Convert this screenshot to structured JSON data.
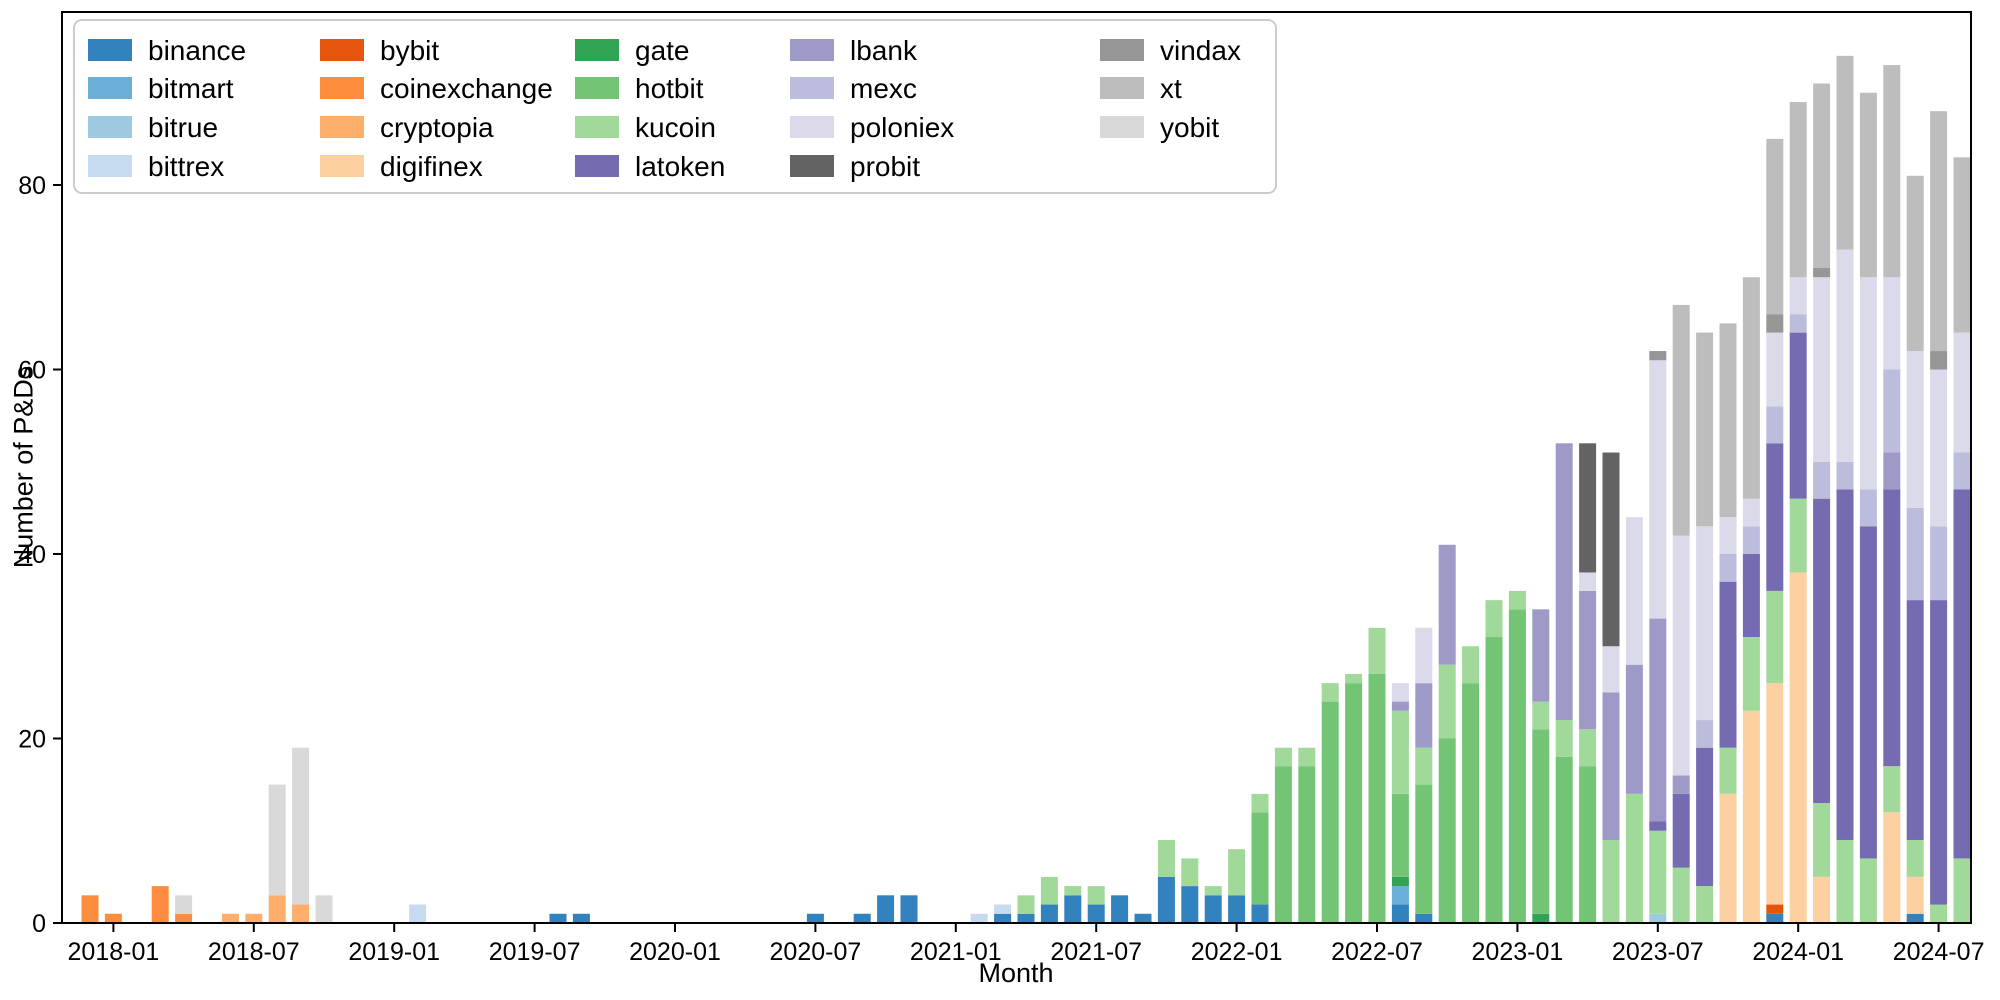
{
  "chart_data": {
    "type": "bar_stacked",
    "title": "",
    "xlabel": "Month",
    "ylabel": "Number of P&Ds",
    "ylim": [
      0,
      98
    ],
    "yticks": [
      0,
      20,
      40,
      60,
      80
    ],
    "xtick_labels": [
      "2018-01",
      "2018-07",
      "2019-01",
      "2019-07",
      "2020-01",
      "2020-07",
      "2021-01",
      "2021-07",
      "2022-01",
      "2022-07",
      "2023-01",
      "2023-07",
      "2024-01",
      "2024-07"
    ],
    "x_start_month": "2017-12",
    "x_end_month": "2024-08",
    "grid": false,
    "legend_position": "upper-left-inside",
    "stack_order": [
      "binance",
      "bitmart",
      "bitrue",
      "bittrex",
      "bybit",
      "coinexchange",
      "cryptopia",
      "digifinex",
      "gate",
      "hotbit",
      "kucoin",
      "latoken",
      "lbank",
      "mexc",
      "poloniex",
      "probit",
      "vindax",
      "xt",
      "yobit"
    ],
    "series_colors": {
      "binance": "#3182bd",
      "bitmart": "#6baed6",
      "bitrue": "#9ecae1",
      "bittrex": "#c6dbef",
      "bybit": "#e6550d",
      "coinexchange": "#fd8d3c",
      "cryptopia": "#fdae6b",
      "digifinex": "#fdd0a2",
      "gate": "#31a354",
      "hotbit": "#74c476",
      "kucoin": "#a1d99b",
      "latoken": "#756bb1",
      "lbank": "#9e9ac8",
      "mexc": "#bcbddc",
      "poloniex": "#dadaeb",
      "probit": "#636363",
      "vindax": "#969696",
      "xt": "#bdbdbd",
      "yobit": "#d9d9d9"
    },
    "months": [
      {
        "m": "2017-12",
        "v": {
          "coinexchange": 3
        }
      },
      {
        "m": "2018-01",
        "v": {
          "coinexchange": 1
        }
      },
      {
        "m": "2018-03",
        "v": {
          "coinexchange": 4
        }
      },
      {
        "m": "2018-04",
        "v": {
          "coinexchange": 1,
          "yobit": 2
        }
      },
      {
        "m": "2018-06",
        "v": {
          "cryptopia": 1
        }
      },
      {
        "m": "2018-07",
        "v": {
          "cryptopia": 1
        }
      },
      {
        "m": "2018-08",
        "v": {
          "cryptopia": 3,
          "yobit": 12
        }
      },
      {
        "m": "2018-09",
        "v": {
          "cryptopia": 2,
          "yobit": 17
        }
      },
      {
        "m": "2018-10",
        "v": {
          "yobit": 3
        }
      },
      {
        "m": "2019-02",
        "v": {
          "bittrex": 2
        }
      },
      {
        "m": "2019-08",
        "v": {
          "binance": 1
        }
      },
      {
        "m": "2019-09",
        "v": {
          "binance": 1
        }
      },
      {
        "m": "2020-07",
        "v": {
          "binance": 1
        }
      },
      {
        "m": "2020-09",
        "v": {
          "binance": 1
        }
      },
      {
        "m": "2020-10",
        "v": {
          "binance": 3
        }
      },
      {
        "m": "2020-11",
        "v": {
          "binance": 3
        }
      },
      {
        "m": "2021-02",
        "v": {
          "bittrex": 1
        }
      },
      {
        "m": "2021-03",
        "v": {
          "binance": 1,
          "bittrex": 1
        }
      },
      {
        "m": "2021-04",
        "v": {
          "binance": 1,
          "kucoin": 2
        }
      },
      {
        "m": "2021-05",
        "v": {
          "binance": 2,
          "kucoin": 3
        }
      },
      {
        "m": "2021-06",
        "v": {
          "binance": 3,
          "kucoin": 1
        }
      },
      {
        "m": "2021-07",
        "v": {
          "binance": 2,
          "kucoin": 2
        }
      },
      {
        "m": "2021-08",
        "v": {
          "binance": 3
        }
      },
      {
        "m": "2021-09",
        "v": {
          "binance": 1
        }
      },
      {
        "m": "2021-10",
        "v": {
          "binance": 5,
          "kucoin": 4
        }
      },
      {
        "m": "2021-11",
        "v": {
          "binance": 4,
          "kucoin": 3
        }
      },
      {
        "m": "2021-12",
        "v": {
          "binance": 3,
          "kucoin": 1
        }
      },
      {
        "m": "2022-01",
        "v": {
          "binance": 3,
          "kucoin": 5
        }
      },
      {
        "m": "2022-02",
        "v": {
          "binance": 2,
          "hotbit": 10,
          "kucoin": 2
        }
      },
      {
        "m": "2022-03",
        "v": {
          "hotbit": 17,
          "kucoin": 2
        }
      },
      {
        "m": "2022-04",
        "v": {
          "hotbit": 17,
          "kucoin": 2
        }
      },
      {
        "m": "2022-05",
        "v": {
          "hotbit": 24,
          "kucoin": 2
        }
      },
      {
        "m": "2022-06",
        "v": {
          "hotbit": 26,
          "kucoin": 1
        }
      },
      {
        "m": "2022-07",
        "v": {
          "hotbit": 27,
          "kucoin": 5
        }
      },
      {
        "m": "2022-08",
        "v": {
          "binance": 2,
          "bitmart": 2,
          "gate": 1,
          "hotbit": 9,
          "kucoin": 9,
          "lbank": 1,
          "poloniex": 2
        }
      },
      {
        "m": "2022-09",
        "v": {
          "binance": 1,
          "hotbit": 14,
          "kucoin": 4,
          "lbank": 7,
          "poloniex": 6
        }
      },
      {
        "m": "2022-10",
        "v": {
          "hotbit": 20,
          "kucoin": 8,
          "lbank": 13
        }
      },
      {
        "m": "2022-11",
        "v": {
          "hotbit": 26,
          "kucoin": 4
        }
      },
      {
        "m": "2022-12",
        "v": {
          "hotbit": 31,
          "kucoin": 4
        }
      },
      {
        "m": "2023-01",
        "v": {
          "hotbit": 34,
          "kucoin": 2
        }
      },
      {
        "m": "2023-02",
        "v": {
          "gate": 1,
          "hotbit": 20,
          "kucoin": 3,
          "lbank": 10
        }
      },
      {
        "m": "2023-03",
        "v": {
          "hotbit": 18,
          "kucoin": 4,
          "lbank": 30
        }
      },
      {
        "m": "2023-04",
        "v": {
          "hotbit": 17,
          "kucoin": 4,
          "lbank": 15,
          "poloniex": 2,
          "probit": 14
        }
      },
      {
        "m": "2023-05",
        "v": {
          "kucoin": 9,
          "lbank": 16,
          "poloniex": 5,
          "probit": 21
        }
      },
      {
        "m": "2023-06",
        "v": {
          "kucoin": 14,
          "lbank": 14,
          "poloniex": 16
        }
      },
      {
        "m": "2023-07",
        "v": {
          "bitrue": 1,
          "kucoin": 9,
          "latoken": 1,
          "lbank": 22,
          "poloniex": 28,
          "vindax": 1
        }
      },
      {
        "m": "2023-08",
        "v": {
          "kucoin": 6,
          "latoken": 8,
          "lbank": 2,
          "poloniex": 26,
          "xt": 25
        }
      },
      {
        "m": "2023-09",
        "v": {
          "kucoin": 4,
          "latoken": 15,
          "mexc": 3,
          "poloniex": 21,
          "xt": 21
        }
      },
      {
        "m": "2023-10",
        "v": {
          "digifinex": 14,
          "kucoin": 5,
          "latoken": 18,
          "mexc": 3,
          "poloniex": 4,
          "xt": 21
        }
      },
      {
        "m": "2023-11",
        "v": {
          "digifinex": 23,
          "kucoin": 8,
          "latoken": 9,
          "mexc": 3,
          "poloniex": 3,
          "xt": 24
        }
      },
      {
        "m": "2023-12",
        "v": {
          "binance": 1,
          "bybit": 1,
          "digifinex": 24,
          "kucoin": 10,
          "latoken": 16,
          "mexc": 4,
          "poloniex": 8,
          "vindax": 2,
          "xt": 19
        }
      },
      {
        "m": "2024-01",
        "v": {
          "digifinex": 38,
          "kucoin": 8,
          "latoken": 18,
          "mexc": 2,
          "poloniex": 4,
          "xt": 19
        }
      },
      {
        "m": "2024-02",
        "v": {
          "digifinex": 5,
          "kucoin": 8,
          "latoken": 33,
          "mexc": 4,
          "poloniex": 20,
          "vindax": 1,
          "xt": 20
        }
      },
      {
        "m": "2024-03",
        "v": {
          "kucoin": 9,
          "latoken": 38,
          "mexc": 3,
          "poloniex": 23,
          "xt": 21
        }
      },
      {
        "m": "2024-04",
        "v": {
          "kucoin": 7,
          "latoken": 36,
          "mexc": 4,
          "poloniex": 23,
          "xt": 20
        }
      },
      {
        "m": "2024-05",
        "v": {
          "digifinex": 12,
          "kucoin": 5,
          "latoken": 30,
          "lbank": 4,
          "mexc": 9,
          "poloniex": 10,
          "xt": 23
        }
      },
      {
        "m": "2024-06",
        "v": {
          "binance": 1,
          "digifinex": 4,
          "kucoin": 4,
          "latoken": 26,
          "mexc": 10,
          "poloniex": 17,
          "xt": 19
        }
      },
      {
        "m": "2024-07",
        "v": {
          "kucoin": 2,
          "latoken": 33,
          "mexc": 8,
          "poloniex": 17,
          "vindax": 2,
          "xt": 26
        }
      },
      {
        "m": "2024-08",
        "v": {
          "kucoin": 7,
          "latoken": 40,
          "mexc": 4,
          "poloniex": 13,
          "xt": 19
        }
      }
    ]
  },
  "legend": {
    "columns": [
      [
        "binance",
        "bitmart",
        "bitrue",
        "bittrex"
      ],
      [
        "bybit",
        "coinexchange",
        "cryptopia",
        "digifinex"
      ],
      [
        "gate",
        "hotbit",
        "kucoin",
        "latoken"
      ],
      [
        "lbank",
        "mexc",
        "poloniex",
        "probit"
      ],
      [
        "vindax",
        "xt",
        "yobit"
      ]
    ]
  }
}
